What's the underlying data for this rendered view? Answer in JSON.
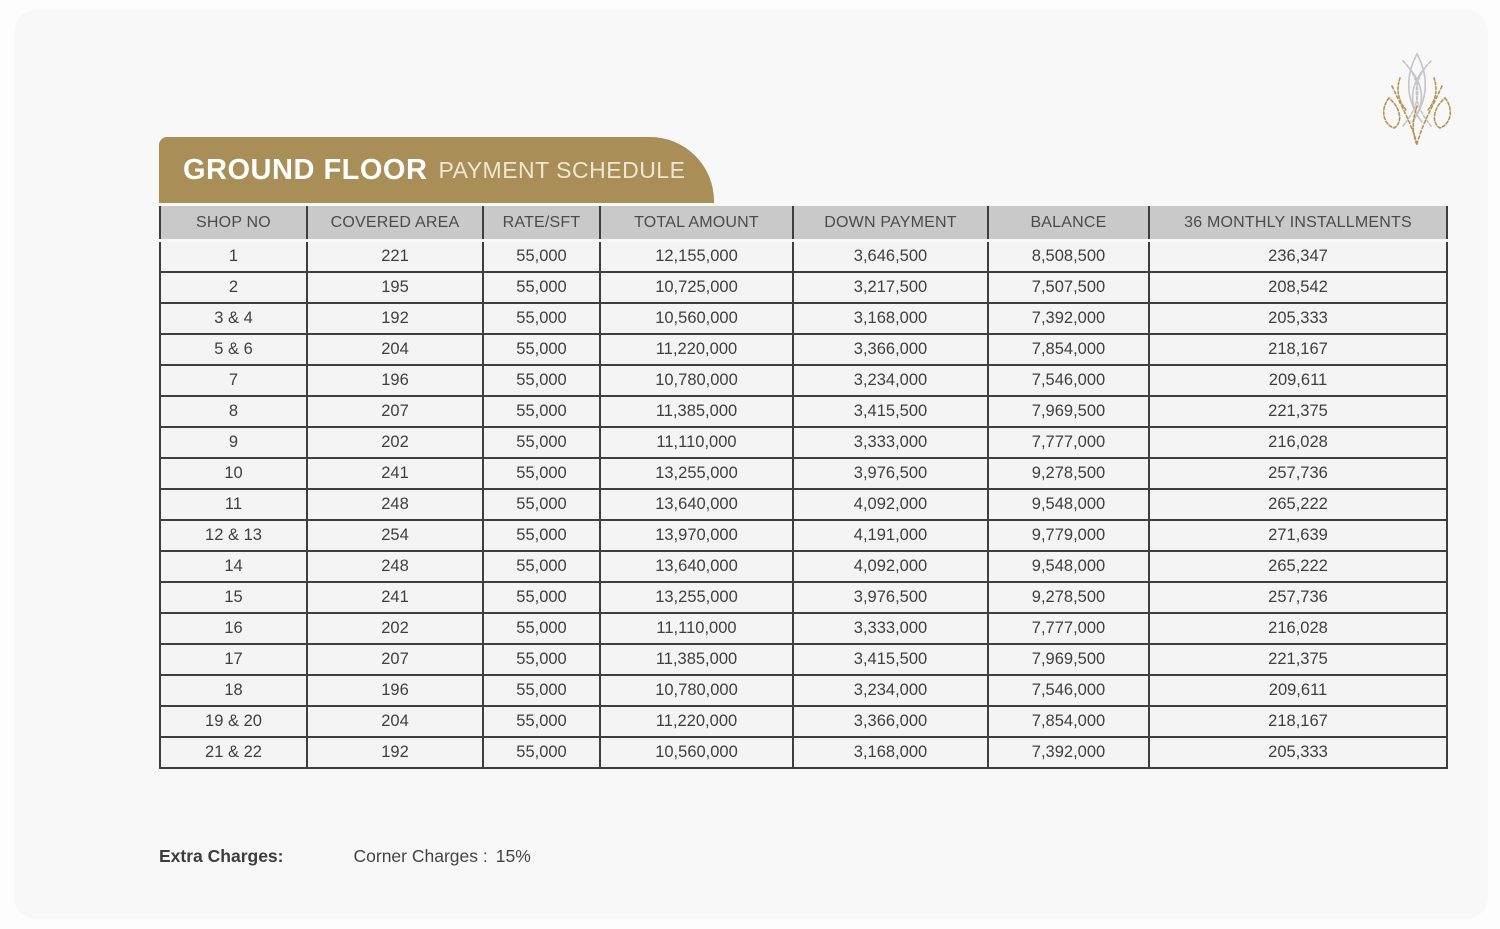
{
  "page": {
    "title_bold": "GROUND FLOOR",
    "title_light": "PAYMENT SCHEDULE"
  },
  "logo": {
    "name": "ornamental-floral-monogram",
    "gold": "#b59455",
    "silver": "#c4c4c9"
  },
  "colors": {
    "banner_gold": "#a98e58",
    "header_gray": "#c9c9c9",
    "border_dark": "#3e3e3e",
    "canvas_bg": "#f8f8f9"
  },
  "table": {
    "headers": [
      "SHOP NO",
      "COVERED AREA",
      "RATE/SFT",
      "TOTAL AMOUNT",
      "DOWN PAYMENT",
      "BALANCE",
      "36 MONTHLY INSTALLMENTS"
    ],
    "rows": [
      [
        "1",
        "221",
        "55,000",
        "12,155,000",
        "3,646,500",
        "8,508,500",
        "236,347"
      ],
      [
        "2",
        "195",
        "55,000",
        "10,725,000",
        "3,217,500",
        "7,507,500",
        "208,542"
      ],
      [
        "3 & 4",
        "192",
        "55,000",
        "10,560,000",
        "3,168,000",
        "7,392,000",
        "205,333"
      ],
      [
        "5 & 6",
        "204",
        "55,000",
        "11,220,000",
        "3,366,000",
        "7,854,000",
        "218,167"
      ],
      [
        "7",
        "196",
        "55,000",
        "10,780,000",
        "3,234,000",
        "7,546,000",
        "209,611"
      ],
      [
        "8",
        "207",
        "55,000",
        "11,385,000",
        "3,415,500",
        "7,969,500",
        "221,375"
      ],
      [
        "9",
        "202",
        "55,000",
        "11,110,000",
        "3,333,000",
        "7,777,000",
        "216,028"
      ],
      [
        "10",
        "241",
        "55,000",
        "13,255,000",
        "3,976,500",
        "9,278,500",
        "257,736"
      ],
      [
        "11",
        "248",
        "55,000",
        "13,640,000",
        "4,092,000",
        "9,548,000",
        "265,222"
      ],
      [
        "12 & 13",
        "254",
        "55,000",
        "13,970,000",
        "4,191,000",
        "9,779,000",
        "271,639"
      ],
      [
        "14",
        "248",
        "55,000",
        "13,640,000",
        "4,092,000",
        "9,548,000",
        "265,222"
      ],
      [
        "15",
        "241",
        "55,000",
        "13,255,000",
        "3,976,500",
        "9,278,500",
        "257,736"
      ],
      [
        "16",
        "202",
        "55,000",
        "11,110,000",
        "3,333,000",
        "7,777,000",
        "216,028"
      ],
      [
        "17",
        "207",
        "55,000",
        "11,385,000",
        "3,415,500",
        "7,969,500",
        "221,375"
      ],
      [
        "18",
        "196",
        "55,000",
        "10,780,000",
        "3,234,000",
        "7,546,000",
        "209,611"
      ],
      [
        "19 & 20",
        "204",
        "55,000",
        "11,220,000",
        "3,366,000",
        "7,854,000",
        "218,167"
      ],
      [
        "21 & 22",
        "192",
        "55,000",
        "10,560,000",
        "3,168,000",
        "7,392,000",
        "205,333"
      ]
    ]
  },
  "footer": {
    "extra_charges_label": "Extra Charges:",
    "corner_charges_label": "Corner Charges :",
    "corner_charges_value": "15%"
  }
}
